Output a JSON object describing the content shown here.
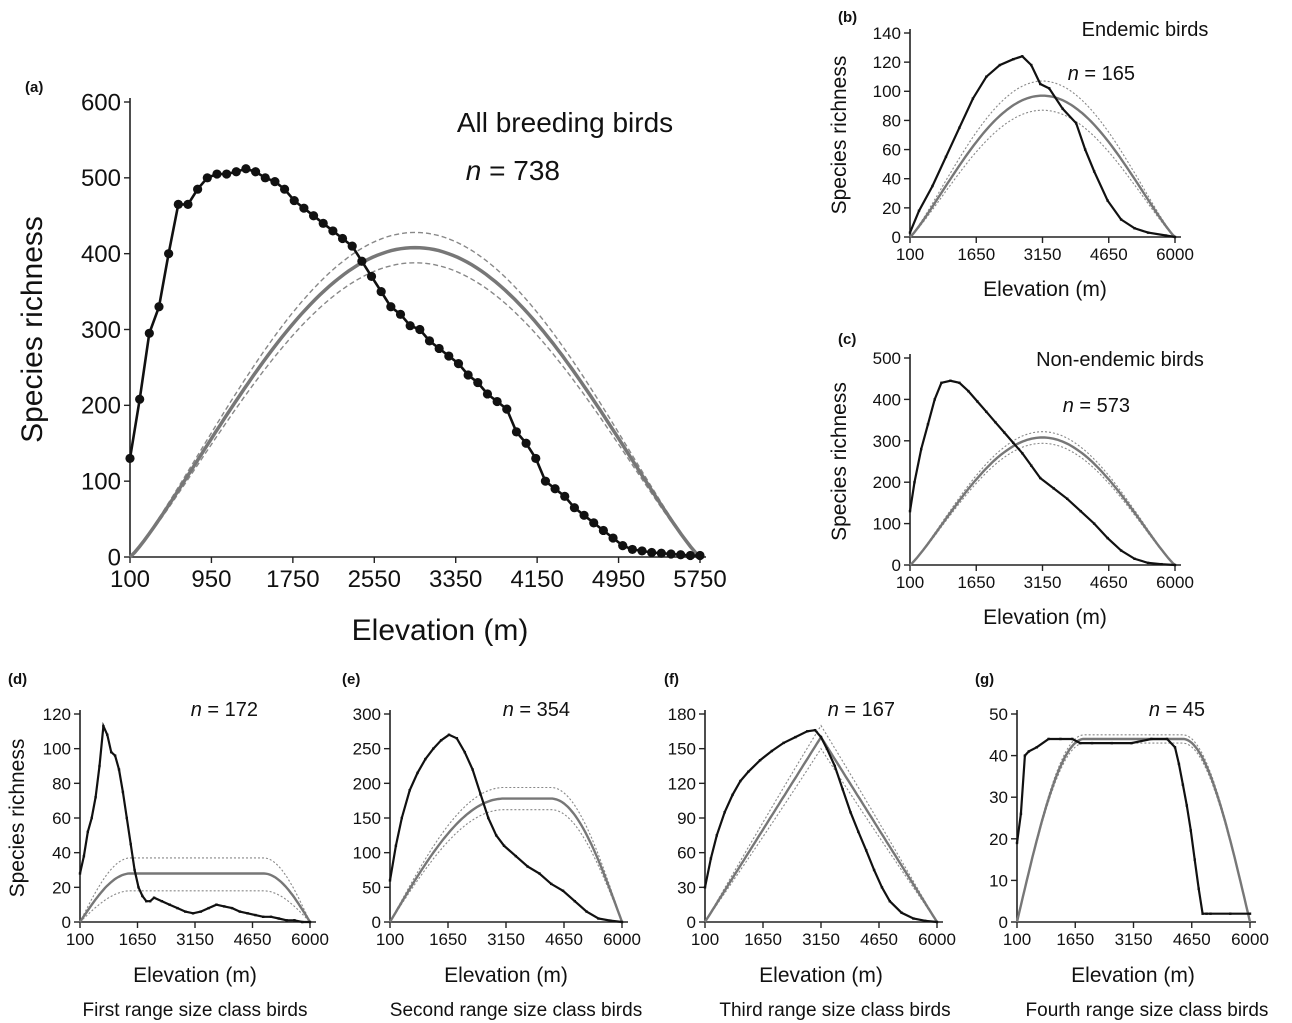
{
  "chart_data": [
    {
      "panel": "(a)",
      "type": "line",
      "title": "All breeding birds",
      "n_prefix": "n",
      "n_value": "= 738",
      "xlabel": "Elevation (m)",
      "ylabel": "Species richness",
      "xlim": [
        100,
        6000
      ],
      "ylim": [
        0,
        600
      ],
      "xticks": [
        100,
        950,
        1750,
        2550,
        3350,
        4150,
        4950,
        5750
      ],
      "yticks": [
        0,
        100,
        200,
        300,
        400,
        500,
        600
      ],
      "series": [
        {
          "style": "observed-markers",
          "x": [
            100,
            200,
            300,
            400,
            500,
            600,
            700,
            800,
            900,
            1000,
            1100,
            1200,
            1300,
            1400,
            1500,
            1600,
            1700,
            1800,
            1900,
            2000,
            2100,
            2200,
            2300,
            2400,
            2500,
            2600,
            2700,
            2800,
            2900,
            3000,
            3100,
            3200,
            3300,
            3400,
            3500,
            3600,
            3700,
            3800,
            3900,
            4000,
            4100,
            4200,
            4300,
            4400,
            4500,
            4600,
            4700,
            4800,
            4900,
            5000,
            5100,
            5200,
            5300,
            5400,
            5500,
            5600,
            5700,
            5800,
            5900,
            6000
          ],
          "y": [
            130,
            208,
            295,
            330,
            400,
            465,
            465,
            485,
            500,
            505,
            505,
            508,
            512,
            508,
            500,
            495,
            485,
            470,
            460,
            450,
            440,
            430,
            420,
            410,
            390,
            370,
            350,
            330,
            320,
            305,
            300,
            285,
            275,
            265,
            255,
            240,
            230,
            215,
            205,
            195,
            165,
            150,
            130,
            100,
            90,
            80,
            65,
            55,
            45,
            35,
            25,
            15,
            10,
            8,
            6,
            5,
            4,
            3,
            2,
            2
          ]
        },
        {
          "style": "expected-mean",
          "x": [
            100,
            6000
          ],
          "peak": 408
        },
        {
          "style": "expected-bounds",
          "x": [
            100,
            6000
          ],
          "lower": 388,
          "upper": 428
        }
      ]
    },
    {
      "panel": "(b)",
      "type": "line",
      "title": "Endemic birds",
      "n_prefix": "n",
      "n_value": "= 165",
      "xlabel": "Elevation (m)",
      "ylabel": "Species richness",
      "xlim": [
        100,
        6000
      ],
      "ylim": [
        0,
        140
      ],
      "xticks": [
        100,
        1650,
        3150,
        4650,
        6000
      ],
      "yticks": [
        0,
        20,
        40,
        60,
        80,
        100,
        120,
        140
      ],
      "series": [
        {
          "style": "observed",
          "x": [
            100,
            300,
            600,
            900,
            1200,
            1500,
            1800,
            2100,
            2400,
            2600,
            2800,
            3000,
            3200,
            3500,
            3800,
            4000,
            4200,
            4500,
            4800,
            5100,
            5400,
            5800,
            6000
          ],
          "y": [
            3,
            18,
            35,
            55,
            75,
            95,
            110,
            118,
            122,
            124,
            118,
            105,
            102,
            88,
            78,
            60,
            45,
            25,
            12,
            6,
            3,
            1,
            0
          ]
        },
        {
          "style": "expected-mean",
          "x": [
            100,
            6000
          ],
          "peak": 97
        },
        {
          "style": "expected-bounds",
          "x": [
            100,
            6000
          ],
          "lower": 87,
          "upper": 107
        }
      ]
    },
    {
      "panel": "(c)",
      "type": "line",
      "title": "Non-endemic birds",
      "n_prefix": "n",
      "n_value": "= 573",
      "xlabel": "Elevation (m)",
      "ylabel": "Species richness",
      "xlim": [
        100,
        6000
      ],
      "ylim": [
        0,
        500
      ],
      "xticks": [
        100,
        1650,
        3150,
        4650,
        6000
      ],
      "yticks": [
        0,
        100,
        200,
        300,
        400,
        500
      ],
      "series": [
        {
          "style": "observed",
          "x": [
            100,
            200,
            350,
            500,
            650,
            800,
            1000,
            1200,
            1400,
            1600,
            1800,
            2000,
            2200,
            2400,
            2600,
            2800,
            3000,
            3300,
            3600,
            3900,
            4200,
            4500,
            4800,
            5100,
            5400,
            5700,
            6000
          ],
          "y": [
            130,
            200,
            280,
            340,
            400,
            440,
            445,
            440,
            420,
            395,
            370,
            345,
            320,
            295,
            270,
            240,
            210,
            185,
            160,
            130,
            100,
            65,
            35,
            15,
            5,
            2,
            0
          ]
        },
        {
          "style": "expected-mean",
          "x": [
            100,
            6000
          ],
          "peak": 308
        },
        {
          "style": "expected-bounds",
          "x": [
            100,
            6000
          ],
          "lower": 294,
          "upper": 322
        }
      ]
    },
    {
      "panel": "(d)",
      "type": "line",
      "footer": "First range size class birds",
      "n_prefix": "n",
      "n_value": "= 172",
      "xlabel": "Elevation (m)",
      "ylabel": "Species richness",
      "xlim": [
        100,
        6000
      ],
      "ylim": [
        0,
        120
      ],
      "xticks": [
        100,
        1650,
        3150,
        4650,
        6000
      ],
      "yticks": [
        0,
        20,
        40,
        60,
        80,
        100,
        120
      ],
      "series": [
        {
          "style": "observed",
          "x": [
            100,
            200,
            300,
            400,
            500,
            600,
            700,
            800,
            900,
            1000,
            1100,
            1200,
            1300,
            1400,
            1500,
            1600,
            1700,
            1800,
            1900,
            2000,
            2200,
            2400,
            2600,
            2800,
            3000,
            3200,
            3400,
            3600,
            3800,
            4000,
            4200,
            4400,
            4600,
            4800,
            5000,
            5200,
            5400,
            5600,
            5800,
            6000
          ],
          "y": [
            28,
            38,
            52,
            60,
            72,
            90,
            113,
            108,
            98,
            96,
            88,
            75,
            60,
            45,
            30,
            20,
            15,
            12,
            12,
            14,
            12,
            10,
            8,
            6,
            5,
            6,
            8,
            10,
            9,
            8,
            6,
            5,
            4,
            3,
            3,
            2,
            1,
            1,
            0,
            0
          ]
        },
        {
          "style": "expected-mean",
          "plateau": 28,
          "ramp_in_end": 1400,
          "ramp_out_start": 4800,
          "x": [
            100,
            6000
          ]
        },
        {
          "style": "expected-bounds",
          "plateau_lower": 18,
          "plateau_upper": 37,
          "x": [
            100,
            6000
          ]
        }
      ]
    },
    {
      "panel": "(e)",
      "type": "line",
      "footer": "Second range size class birds",
      "n_prefix": "n",
      "n_value": "= 354",
      "xlabel": "Elevation (m)",
      "ylabel": "",
      "xlim": [
        100,
        6000
      ],
      "ylim": [
        0,
        300
      ],
      "xticks": [
        100,
        1650,
        3150,
        4650,
        6000
      ],
      "yticks": [
        0,
        50,
        100,
        150,
        200,
        250,
        300
      ],
      "series": [
        {
          "style": "observed",
          "x": [
            100,
            250,
            400,
            600,
            800,
            1000,
            1200,
            1400,
            1600,
            1800,
            2000,
            2200,
            2400,
            2600,
            2800,
            3000,
            3300,
            3600,
            3900,
            4200,
            4500,
            4800,
            5100,
            5400,
            5700,
            6000
          ],
          "y": [
            60,
            110,
            150,
            190,
            215,
            235,
            250,
            262,
            270,
            265,
            245,
            220,
            185,
            150,
            125,
            110,
            95,
            80,
            70,
            55,
            45,
            30,
            15,
            5,
            2,
            0
          ]
        },
        {
          "style": "expected-mean",
          "plateau": 178,
          "ramp_in_end": 3000,
          "ramp_out_start": 4200,
          "x": [
            100,
            6000
          ]
        },
        {
          "style": "expected-bounds",
          "plateau_lower": 162,
          "plateau_upper": 194,
          "x": [
            100,
            6000
          ]
        }
      ]
    },
    {
      "panel": "(f)",
      "type": "line",
      "footer": "Third range size class birds",
      "n_prefix": "n",
      "n_value": "= 167",
      "xlabel": "Elevation (m)",
      "ylabel": "",
      "xlim": [
        100,
        6000
      ],
      "ylim": [
        0,
        180
      ],
      "xticks": [
        100,
        1650,
        3150,
        4650,
        6000
      ],
      "yticks": [
        0,
        30,
        60,
        90,
        120,
        150,
        180
      ],
      "series": [
        {
          "style": "observed",
          "x": [
            100,
            250,
            400,
            600,
            800,
            1000,
            1200,
            1500,
            1800,
            2100,
            2400,
            2700,
            2900,
            3050,
            3200,
            3400,
            3600,
            3800,
            4000,
            4200,
            4400,
            4600,
            4800,
            5100,
            5400,
            5700,
            6000
          ],
          "y": [
            30,
            55,
            75,
            95,
            110,
            122,
            130,
            140,
            148,
            155,
            160,
            165,
            166,
            160,
            150,
            135,
            115,
            95,
            78,
            62,
            45,
            30,
            18,
            8,
            3,
            1,
            0
          ]
        },
        {
          "style": "expected-mean",
          "peak": 160,
          "peak_x": 3050,
          "x": [
            100,
            6000
          ]
        },
        {
          "style": "expected-bounds",
          "peak_lower": 156,
          "peak_upper": 164,
          "x": [
            100,
            6000
          ]
        }
      ]
    },
    {
      "panel": "(g)",
      "type": "line",
      "footer": "Fourth range size class birds",
      "n_prefix": "n",
      "n_value": "= 45",
      "xlabel": "Elevation (m)",
      "ylabel": "",
      "xlim": [
        100,
        6000
      ],
      "ylim": [
        0,
        50
      ],
      "xticks": [
        100,
        1650,
        3150,
        4650,
        6000
      ],
      "yticks": [
        0,
        10,
        20,
        30,
        40,
        50
      ],
      "series": [
        {
          "style": "observed",
          "x": [
            100,
            200,
            300,
            400,
            600,
            900,
            1200,
            1500,
            1700,
            2000,
            2500,
            3000,
            3500,
            3900,
            4100,
            4200,
            4300,
            4400,
            4500,
            4600,
            4700,
            4800,
            4900,
            5000,
            5500,
            6000
          ],
          "y": [
            19,
            26,
            40,
            41,
            42,
            44,
            44,
            44,
            43,
            43,
            43,
            43,
            44,
            44,
            42,
            38,
            33,
            28,
            22,
            15,
            8,
            2,
            2,
            2,
            2,
            2
          ]
        },
        {
          "style": "expected-mean",
          "plateau": 44,
          "ramp_in_end": 1800,
          "ramp_out_start": 4300,
          "x": [
            100,
            6000
          ]
        },
        {
          "style": "expected-bounds",
          "plateau_lower": 43,
          "plateau_upper": 45,
          "x": [
            100,
            6000
          ]
        }
      ]
    }
  ]
}
